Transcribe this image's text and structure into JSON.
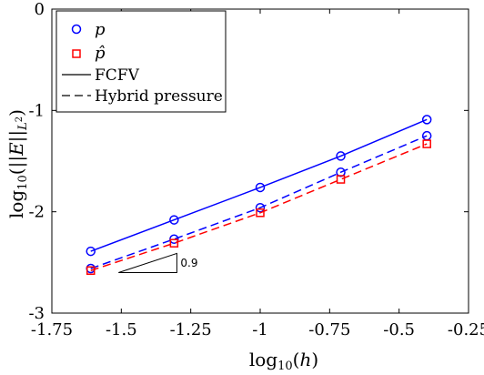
{
  "chart_data": {
    "type": "line",
    "xlabel": "log10(h)",
    "ylabel": "log10(||E||L2)",
    "xlim": [
      -1.75,
      -0.25
    ],
    "ylim": [
      -3,
      0
    ],
    "xticks": [
      -1.75,
      -1.5,
      -1.25,
      -1,
      -0.75,
      -0.5,
      -0.25
    ],
    "xtick_labels": [
      "-1.75",
      "-1.5",
      "-1.25",
      "-1",
      "-0.75",
      "-0.5",
      "-0.25"
    ],
    "yticks": [
      -3,
      -2,
      -1,
      0
    ],
    "ytick_labels": [
      "-3",
      "-2",
      "-1",
      "0"
    ],
    "grid": false,
    "legend_position": "top-left",
    "x": [
      -1.61,
      -1.31,
      -1.0,
      -0.71,
      -0.4
    ],
    "series": [
      {
        "name": "p",
        "method": "FCFV",
        "color": "#0000ff",
        "marker": "circle",
        "line": "solid",
        "values": [
          -2.39,
          -2.08,
          -1.76,
          -1.45,
          -1.09
        ]
      },
      {
        "name": "p",
        "method": "Hybrid pressure",
        "color": "#0000ff",
        "marker": "circle",
        "line": "dashed",
        "values": [
          -2.56,
          -2.27,
          -1.96,
          -1.61,
          -1.25
        ]
      },
      {
        "name": "p̂",
        "method": "Hybrid pressure",
        "color": "#ff0000",
        "marker": "square",
        "line": "dashed",
        "values": [
          -2.58,
          -2.31,
          -2.01,
          -1.68,
          -1.33
        ]
      }
    ],
    "legend": [
      {
        "label": "p",
        "kind": "marker-circle",
        "color": "#0000ff"
      },
      {
        "label": "p̂",
        "kind": "marker-square",
        "color": "#ff0000"
      },
      {
        "label": "FCFV",
        "kind": "line-solid",
        "color": "#000000"
      },
      {
        "label": "Hybrid pressure",
        "kind": "line-dashed",
        "color": "#000000"
      }
    ],
    "slope_triangle": {
      "label": "0.9",
      "x0": -1.51,
      "x1": -1.3,
      "y0": -2.6,
      "slope": 0.9
    }
  }
}
